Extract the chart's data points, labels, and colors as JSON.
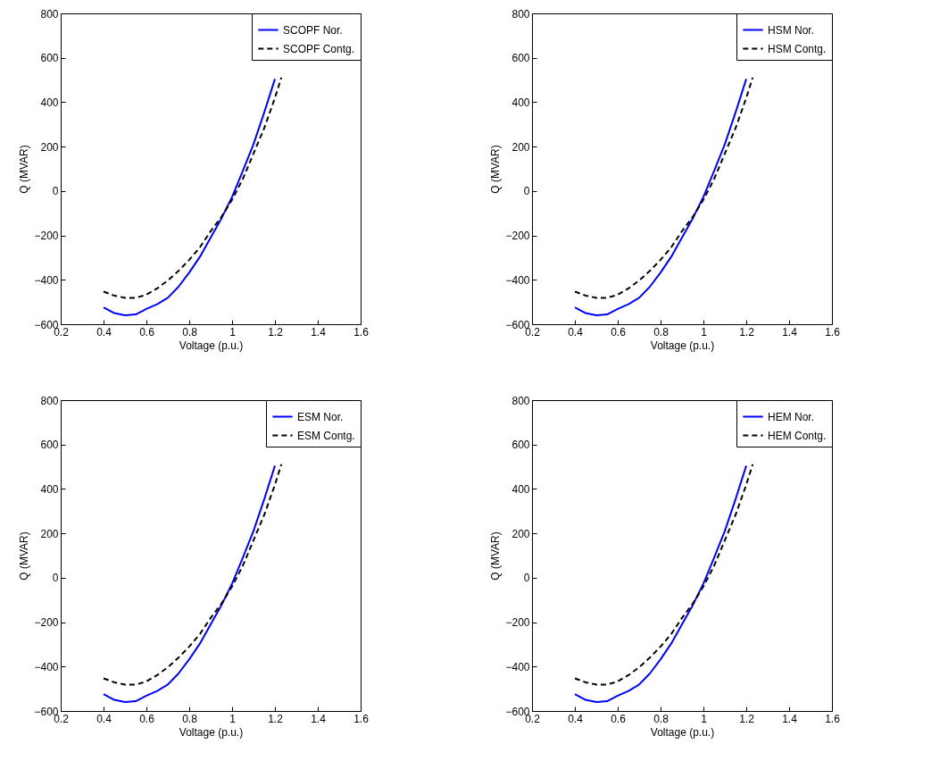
{
  "chart_data": [
    {
      "type": "line",
      "xlabel": "Voltage (p.u.)",
      "ylabel": "Q (MVAR)",
      "xlim": [
        0.2,
        1.6
      ],
      "xticks": [
        0.2,
        0.4,
        0.6,
        0.8,
        1,
        1.2,
        1.4,
        1.6
      ],
      "ylim": [
        -600,
        800
      ],
      "yticks": [
        -600,
        -400,
        -200,
        0,
        200,
        400,
        600,
        800
      ],
      "grid": false,
      "legend": "top right",
      "series": [
        {
          "name": "SCOPF Nor.",
          "color": "#0000ff",
          "line_style": "solid",
          "x": [
            0.4,
            0.45,
            0.5,
            0.55,
            0.6,
            0.65,
            0.7,
            0.75,
            0.8,
            0.85,
            0.9,
            0.95,
            1.0,
            1.05,
            1.1,
            1.15,
            1.2
          ],
          "values": [
            -524,
            -550,
            -560,
            -556,
            -531,
            -510,
            -481,
            -431,
            -367,
            -296,
            -210,
            -124,
            -26,
            90,
            211,
            354,
            505
          ]
        },
        {
          "name": "SCOPF Contg.",
          "color": "#000000",
          "line_style": "dashed",
          "x": [
            0.4,
            0.45,
            0.5,
            0.55,
            0.6,
            0.65,
            0.7,
            0.75,
            0.8,
            0.85,
            0.9,
            0.95,
            1.0,
            1.05,
            1.1,
            1.15,
            1.2,
            1.23
          ],
          "values": [
            -453,
            -471,
            -481,
            -481,
            -467,
            -439,
            -403,
            -360,
            -310,
            -253,
            -181,
            -117,
            -39,
            54,
            169,
            283,
            419,
            511
          ]
        }
      ]
    },
    {
      "type": "line",
      "xlabel": "Voltage (p.u.)",
      "ylabel": "Q (MVAR)",
      "xlim": [
        0.2,
        1.6
      ],
      "xticks": [
        0.2,
        0.4,
        0.6,
        0.8,
        1,
        1.2,
        1.4,
        1.6
      ],
      "ylim": [
        -600,
        800
      ],
      "yticks": [
        -600,
        -400,
        -200,
        0,
        200,
        400,
        600,
        800
      ],
      "grid": false,
      "legend": "top right",
      "series": [
        {
          "name": "HSM Nor.",
          "color": "#0000ff",
          "line_style": "solid",
          "x": [
            0.4,
            0.45,
            0.5,
            0.55,
            0.6,
            0.65,
            0.7,
            0.75,
            0.8,
            0.85,
            0.9,
            0.95,
            1.0,
            1.05,
            1.1,
            1.15,
            1.2
          ],
          "values": [
            -524,
            -550,
            -560,
            -556,
            -531,
            -510,
            -481,
            -431,
            -367,
            -296,
            -210,
            -124,
            -26,
            90,
            211,
            354,
            505
          ]
        },
        {
          "name": "HSM Contg.",
          "color": "#000000",
          "line_style": "dashed",
          "x": [
            0.4,
            0.45,
            0.5,
            0.55,
            0.6,
            0.65,
            0.7,
            0.75,
            0.8,
            0.85,
            0.9,
            0.95,
            1.0,
            1.05,
            1.1,
            1.15,
            1.2,
            1.23
          ],
          "values": [
            -453,
            -471,
            -481,
            -481,
            -467,
            -439,
            -403,
            -360,
            -310,
            -253,
            -181,
            -117,
            -39,
            54,
            169,
            283,
            419,
            511
          ]
        }
      ]
    },
    {
      "type": "line",
      "xlabel": "Voltage (p.u.)",
      "ylabel": "Q (MVAR)",
      "xlim": [
        0.2,
        1.6
      ],
      "xticks": [
        0.2,
        0.4,
        0.6,
        0.8,
        1,
        1.2,
        1.4,
        1.6
      ],
      "ylim": [
        -600,
        800
      ],
      "yticks": [
        -600,
        -400,
        -200,
        0,
        200,
        400,
        600,
        800
      ],
      "grid": false,
      "legend": "top right",
      "series": [
        {
          "name": "ESM Nor.",
          "color": "#0000ff",
          "line_style": "solid",
          "x": [
            0.4,
            0.45,
            0.5,
            0.55,
            0.6,
            0.65,
            0.7,
            0.75,
            0.8,
            0.85,
            0.9,
            0.95,
            1.0,
            1.05,
            1.1,
            1.15,
            1.2
          ],
          "values": [
            -524,
            -550,
            -560,
            -556,
            -531,
            -510,
            -481,
            -431,
            -367,
            -296,
            -210,
            -124,
            -26,
            90,
            211,
            354,
            505
          ]
        },
        {
          "name": "ESM Contg.",
          "color": "#000000",
          "line_style": "dashed",
          "x": [
            0.4,
            0.45,
            0.5,
            0.55,
            0.6,
            0.65,
            0.7,
            0.75,
            0.8,
            0.85,
            0.9,
            0.95,
            1.0,
            1.05,
            1.1,
            1.15,
            1.2,
            1.23
          ],
          "values": [
            -453,
            -471,
            -481,
            -481,
            -467,
            -439,
            -403,
            -360,
            -310,
            -253,
            -181,
            -117,
            -39,
            54,
            169,
            283,
            419,
            511
          ]
        }
      ]
    },
    {
      "type": "line",
      "xlabel": "Voltage (p.u.)",
      "ylabel": "Q (MVAR)",
      "xlim": [
        0.2,
        1.6
      ],
      "xticks": [
        0.2,
        0.4,
        0.6,
        0.8,
        1,
        1.2,
        1.4,
        1.6
      ],
      "ylim": [
        -600,
        800
      ],
      "yticks": [
        -600,
        -400,
        -200,
        0,
        200,
        400,
        600,
        800
      ],
      "grid": false,
      "legend": "top right",
      "series": [
        {
          "name": "HEM Nor.",
          "color": "#0000ff",
          "line_style": "solid",
          "x": [
            0.4,
            0.45,
            0.5,
            0.55,
            0.6,
            0.65,
            0.7,
            0.75,
            0.8,
            0.85,
            0.9,
            0.95,
            1.0,
            1.05,
            1.1,
            1.15,
            1.2
          ],
          "values": [
            -524,
            -550,
            -560,
            -556,
            -531,
            -510,
            -481,
            -431,
            -367,
            -296,
            -210,
            -124,
            -26,
            90,
            211,
            354,
            505
          ]
        },
        {
          "name": "HEM Contg.",
          "color": "#000000",
          "line_style": "dashed",
          "x": [
            0.4,
            0.45,
            0.5,
            0.55,
            0.6,
            0.65,
            0.7,
            0.75,
            0.8,
            0.85,
            0.9,
            0.95,
            1.0,
            1.05,
            1.1,
            1.15,
            1.2,
            1.23
          ],
          "values": [
            -453,
            -471,
            -481,
            -481,
            -467,
            -439,
            -403,
            -360,
            -310,
            -253,
            -181,
            -117,
            -39,
            54,
            169,
            283,
            419,
            511
          ]
        }
      ]
    }
  ]
}
